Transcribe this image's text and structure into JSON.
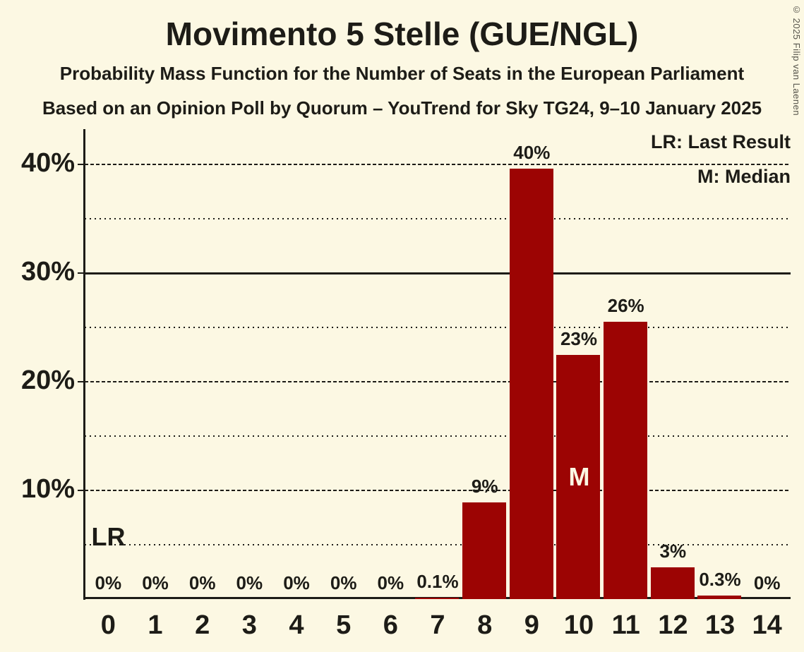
{
  "title": "Movimento 5 Stelle (GUE/NGL)",
  "subtitle1": "Probability Mass Function for the Number of Seats in the European Parliament",
  "subtitle2": "Based on an Opinion Poll by Quorum – YouTrend for Sky TG24, 9–10 January 2025",
  "copyright": "© 2025 Filip van Laenen",
  "legend": {
    "lr": "LR: Last Result",
    "m": "M: Median"
  },
  "colors": {
    "background": "#FCF8E3",
    "bar": "#9C0403",
    "text": "#1D1C17",
    "median_text": "#FCF8E3",
    "copyright_text": "#55534A"
  },
  "chart_data": {
    "type": "bar",
    "title": "Movimento 5 Stelle (GUE/NGL)",
    "subtitle": "Probability Mass Function for the Number of Seats in the European Parliament",
    "source_line": "Based on an Opinion Poll by Quorum – YouTrend for Sky TG24, 9–10 January 2025",
    "categories": [
      "0",
      "1",
      "2",
      "3",
      "4",
      "5",
      "6",
      "7",
      "8",
      "9",
      "10",
      "11",
      "12",
      "13",
      "14"
    ],
    "values": [
      0,
      0,
      0,
      0,
      0,
      0,
      0,
      0.1,
      8.9,
      39.6,
      22.5,
      25.5,
      2.9,
      0.3,
      0
    ],
    "bar_labels": [
      "0%",
      "0%",
      "0%",
      "0%",
      "0%",
      "0%",
      "0%",
      "0.1%",
      "9%",
      "40%",
      "23%",
      "26%",
      "3%",
      "0.3%",
      "0%"
    ],
    "y_axis": {
      "tick_labels": [
        "10%",
        "20%",
        "30%",
        "40%"
      ],
      "major_ticks": [
        10,
        20,
        30,
        40
      ],
      "minor_ticks": [
        5,
        15,
        25,
        35
      ],
      "range": [
        0,
        43.2
      ],
      "unit": "percent"
    },
    "gridline_styles": {
      "5": "dotted",
      "10": "dashed",
      "15": "dotted",
      "20": "dashed",
      "25": "dotted",
      "30": "solid",
      "35": "dotted",
      "40": "dashed"
    },
    "annotations": {
      "lr_label": "LR",
      "lr_seat": 0,
      "median_label": "M",
      "median_seat": 10
    },
    "legend_position": "top-right",
    "legend_entries": [
      "LR: Last Result",
      "M: Median"
    ]
  }
}
